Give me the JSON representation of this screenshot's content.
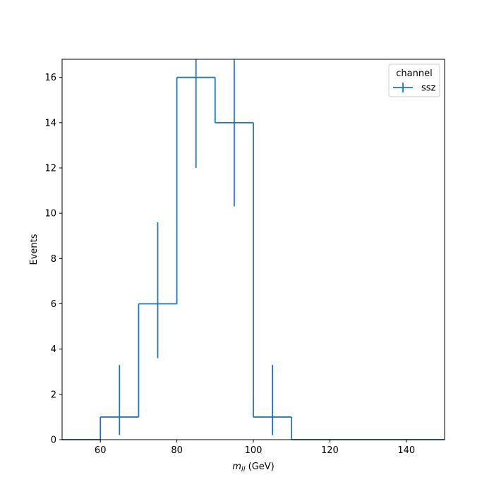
{
  "chart_data": {
    "type": "step",
    "xlabel_main": "m",
    "xlabel_sub": "ll",
    "xlabel_unit": " (GeV)",
    "ylabel": "Events",
    "xlim": [
      50,
      150
    ],
    "ylim": [
      0,
      16.8
    ],
    "xticks": [
      60,
      80,
      100,
      120,
      140
    ],
    "yticks": [
      0,
      2,
      4,
      6,
      8,
      10,
      12,
      14,
      16
    ],
    "bin_edges": [
      50,
      60,
      70,
      80,
      90,
      100,
      110,
      120,
      130,
      140,
      150
    ],
    "series": [
      {
        "name": "ssz",
        "color": "#1f77b4",
        "values": [
          0,
          1,
          6,
          16,
          14,
          1,
          0,
          0,
          0,
          0
        ],
        "errors": [
          {
            "x": 65,
            "low": 0.2,
            "high": 3.3
          },
          {
            "x": 75,
            "low": 3.6,
            "high": 9.6
          },
          {
            "x": 85,
            "low": 12.0,
            "high": 16.8
          },
          {
            "x": 95,
            "low": 10.3,
            "high": 16.8
          },
          {
            "x": 105,
            "low": 0.2,
            "high": 3.3
          }
        ]
      }
    ],
    "legend": {
      "title": "channel",
      "location": "top-right"
    },
    "grid": false
  }
}
